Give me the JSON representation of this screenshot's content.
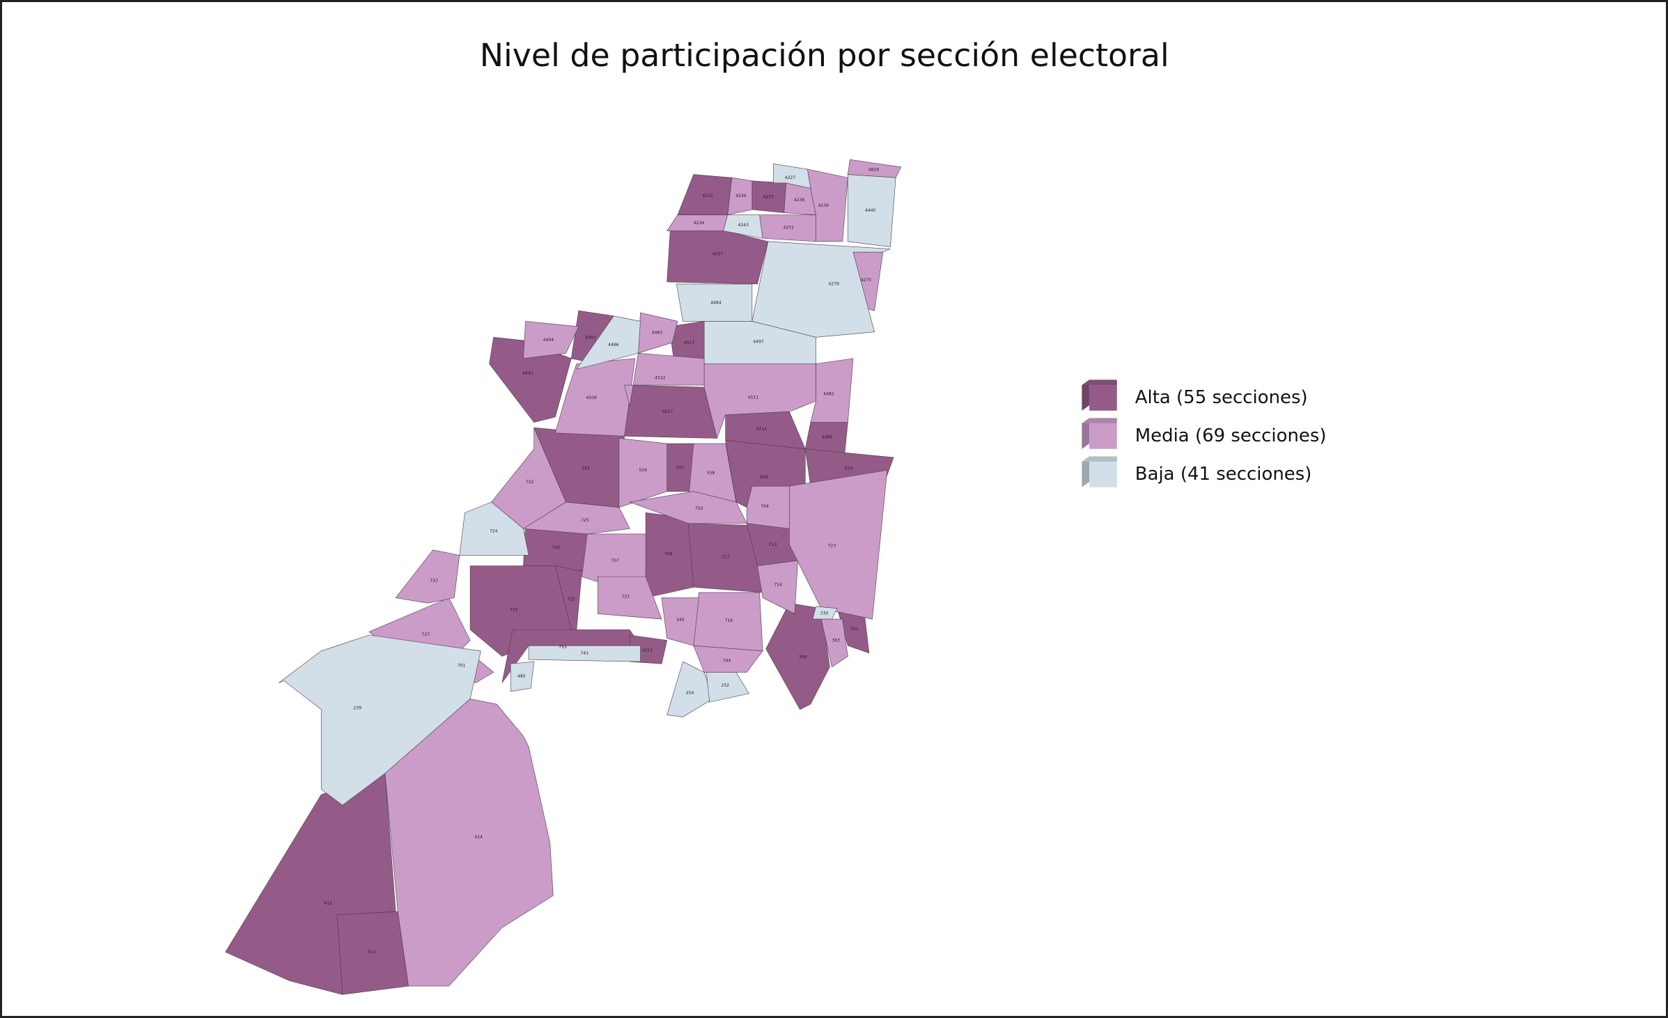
{
  "title": "Nivel de participación por sección electoral",
  "legend": {
    "items": [
      {
        "label": "Alta (55 secciones)",
        "color": "#955b88",
        "sections": [
          "412",
          "413",
          "4231",
          "4237",
          "4037",
          "4493",
          "4443",
          "4517",
          "4527",
          "4714",
          "4480",
          "555",
          "557",
          "559",
          "524",
          "726",
          "708",
          "717",
          "713",
          "733",
          "732",
          "753",
          "1013",
          "366",
          "351"
        ]
      },
      {
        "label": "Media (69 secciones)",
        "color": "#cc9cc9",
        "sections": [
          "414",
          "4236",
          "4238",
          "4239",
          "4829",
          "4234",
          "4251",
          "4275",
          "4494",
          "4483",
          "4506",
          "4522",
          "4511",
          "4482",
          "722",
          "556",
          "558",
          "723",
          "725",
          "750",
          "704",
          "707",
          "714",
          "721",
          "716",
          "340",
          "744",
          "363",
          "727",
          "701",
          "737"
        ]
      },
      {
        "label": "Baja (41 secciones)",
        "color": "#d2dfe9",
        "sections": [
          "239",
          "4227",
          "4440",
          "4243",
          "4278",
          "4484",
          "4496",
          "4497",
          "724",
          "741",
          "330",
          "254",
          "252",
          "485"
        ]
      }
    ]
  }
}
